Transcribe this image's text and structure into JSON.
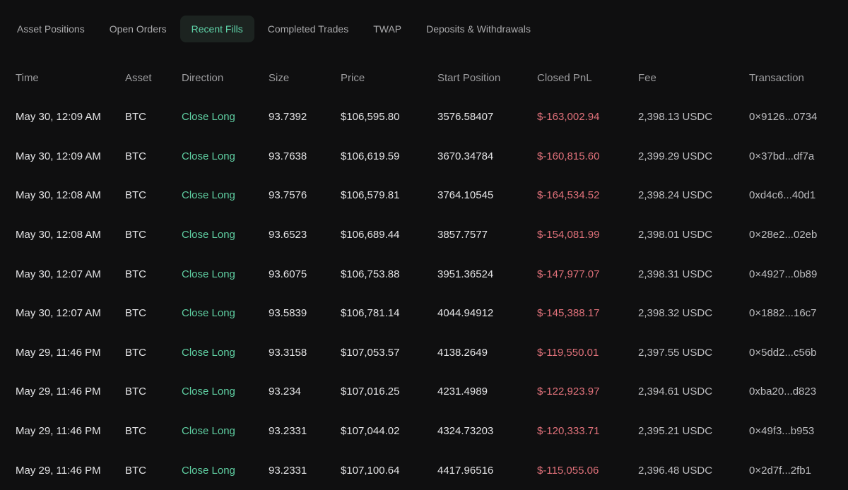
{
  "tabs": [
    {
      "label": "Asset Positions",
      "active": false
    },
    {
      "label": "Open Orders",
      "active": false
    },
    {
      "label": "Recent Fills",
      "active": true
    },
    {
      "label": "Completed Trades",
      "active": false
    },
    {
      "label": "TWAP",
      "active": false
    },
    {
      "label": "Deposits & Withdrawals",
      "active": false
    }
  ],
  "columns": [
    "Time",
    "Asset",
    "Direction",
    "Size",
    "Price",
    "Start Position",
    "Closed PnL",
    "Fee",
    "Transaction"
  ],
  "rows": [
    {
      "time": "May 30, 12:09 AM",
      "asset": "BTC",
      "direction": "Close Long",
      "size": "93.7392",
      "price": "$106,595.80",
      "start_position": "3576.58407",
      "closed_pnl": "$-163,002.94",
      "fee": "2,398.13 USDC",
      "transaction": "0×9126...0734"
    },
    {
      "time": "May 30, 12:09 AM",
      "asset": "BTC",
      "direction": "Close Long",
      "size": "93.7638",
      "price": "$106,619.59",
      "start_position": "3670.34784",
      "closed_pnl": "$-160,815.60",
      "fee": "2,399.29 USDC",
      "transaction": "0×37bd...df7a"
    },
    {
      "time": "May 30, 12:08 AM",
      "asset": "BTC",
      "direction": "Close Long",
      "size": "93.7576",
      "price": "$106,579.81",
      "start_position": "3764.10545",
      "closed_pnl": "$-164,534.52",
      "fee": "2,398.24 USDC",
      "transaction": "0xd4c6...40d1"
    },
    {
      "time": "May 30, 12:08 AM",
      "asset": "BTC",
      "direction": "Close Long",
      "size": "93.6523",
      "price": "$106,689.44",
      "start_position": "3857.7577",
      "closed_pnl": "$-154,081.99",
      "fee": "2,398.01 USDC",
      "transaction": "0×28e2...02eb"
    },
    {
      "time": "May 30, 12:07 AM",
      "asset": "BTC",
      "direction": "Close Long",
      "size": "93.6075",
      "price": "$106,753.88",
      "start_position": "3951.36524",
      "closed_pnl": "$-147,977.07",
      "fee": "2,398.31 USDC",
      "transaction": "0×4927...0b89"
    },
    {
      "time": "May 30, 12:07 AM",
      "asset": "BTC",
      "direction": "Close Long",
      "size": "93.5839",
      "price": "$106,781.14",
      "start_position": "4044.94912",
      "closed_pnl": "$-145,388.17",
      "fee": "2,398.32 USDC",
      "transaction": "0×1882...16c7"
    },
    {
      "time": "May 29, 11:46 PM",
      "asset": "BTC",
      "direction": "Close Long",
      "size": "93.3158",
      "price": "$107,053.57",
      "start_position": "4138.2649",
      "closed_pnl": "$-119,550.01",
      "fee": "2,397.55 USDC",
      "transaction": "0×5dd2...c56b"
    },
    {
      "time": "May 29, 11:46 PM",
      "asset": "BTC",
      "direction": "Close Long",
      "size": "93.234",
      "price": "$107,016.25",
      "start_position": "4231.4989",
      "closed_pnl": "$-122,923.97",
      "fee": "2,394.61 USDC",
      "transaction": "0xba20...d823"
    },
    {
      "time": "May 29, 11:46 PM",
      "asset": "BTC",
      "direction": "Close Long",
      "size": "93.2331",
      "price": "$107,044.02",
      "start_position": "4324.73203",
      "closed_pnl": "$-120,333.71",
      "fee": "2,395.21 USDC",
      "transaction": "0×49f3...b953"
    },
    {
      "time": "May 29, 11:46 PM",
      "asset": "BTC",
      "direction": "Close Long",
      "size": "93.2331",
      "price": "$107,100.64",
      "start_position": "4417.96516",
      "closed_pnl": "$-115,055.06",
      "fee": "2,396.48 USDC",
      "transaction": "0×2d7f...2fb1"
    }
  ],
  "colors": {
    "background": "#0f0f10",
    "active_tab_bg": "#1c2320",
    "accent_green": "#5fcfa2",
    "pnl_red": "#e0717a"
  }
}
